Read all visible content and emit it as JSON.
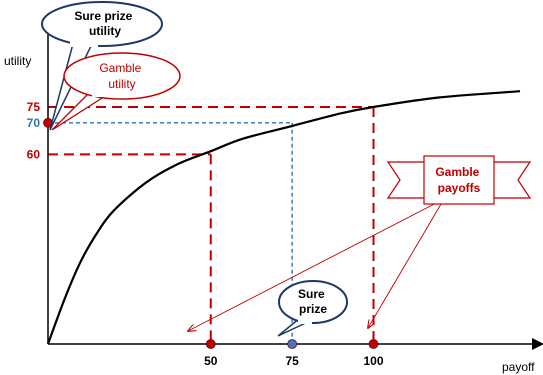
{
  "chart_data": {
    "type": "line",
    "title": "",
    "xlabel": "payoff",
    "ylabel": "utility",
    "series": [
      {
        "x": [
          0,
          5,
          10,
          15,
          20,
          30,
          40,
          50,
          60,
          75,
          90,
          100,
          120,
          145
        ],
        "y": [
          0,
          14,
          26,
          35,
          42,
          51,
          57,
          61,
          65,
          69,
          73,
          75,
          78,
          80
        ]
      }
    ],
    "x_ticks": [
      {
        "value": 50,
        "label": "50",
        "color": "#000000"
      },
      {
        "value": 75,
        "label": "75",
        "color": "#000000"
      },
      {
        "value": 100,
        "label": "100",
        "color": "#000000"
      }
    ],
    "y_ticks": [
      {
        "value": 75,
        "label": "75",
        "color": "#c00000"
      },
      {
        "value": 70,
        "label": "70",
        "color": "#2e75b6"
      },
      {
        "value": 60,
        "label": "60",
        "color": "#c00000"
      }
    ],
    "points": [
      {
        "x": 0,
        "y": 70,
        "color": "#c00000"
      },
      {
        "x": 50,
        "y": 0,
        "color": "#c00000"
      },
      {
        "x": 75,
        "y": 0,
        "color": "#4472c4"
      },
      {
        "x": 100,
        "y": 0,
        "color": "#c00000"
      }
    ],
    "guides": [
      {
        "from": [
          0,
          75
        ],
        "to": [
          100,
          75
        ],
        "vline_to_axis": true,
        "color": "#c00000",
        "style": "long-dash"
      },
      {
        "from": [
          0,
          70
        ],
        "to": [
          75,
          70
        ],
        "vline_to_axis": true,
        "color": "#2e75b6",
        "style": "short-dash"
      },
      {
        "from": [
          0,
          60
        ],
        "to": [
          50,
          60
        ],
        "vline_to_axis": true,
        "color": "#c00000",
        "style": "long-dash"
      }
    ],
    "annotations": {
      "sure_prize_utility": "Sure prize utility",
      "gamble_utility": "Gamble utility",
      "gamble_payoffs": "Gamble payoffs",
      "sure_prize": "Sure prize"
    },
    "xlim": [
      0,
      145
    ],
    "ylim": [
      0,
      100
    ],
    "grid": false,
    "colors": {
      "red": "#c00000",
      "blue": "#2e75b6",
      "navy": "#1f3864",
      "point_blue": "#4472c4",
      "curve": "#000000"
    }
  }
}
